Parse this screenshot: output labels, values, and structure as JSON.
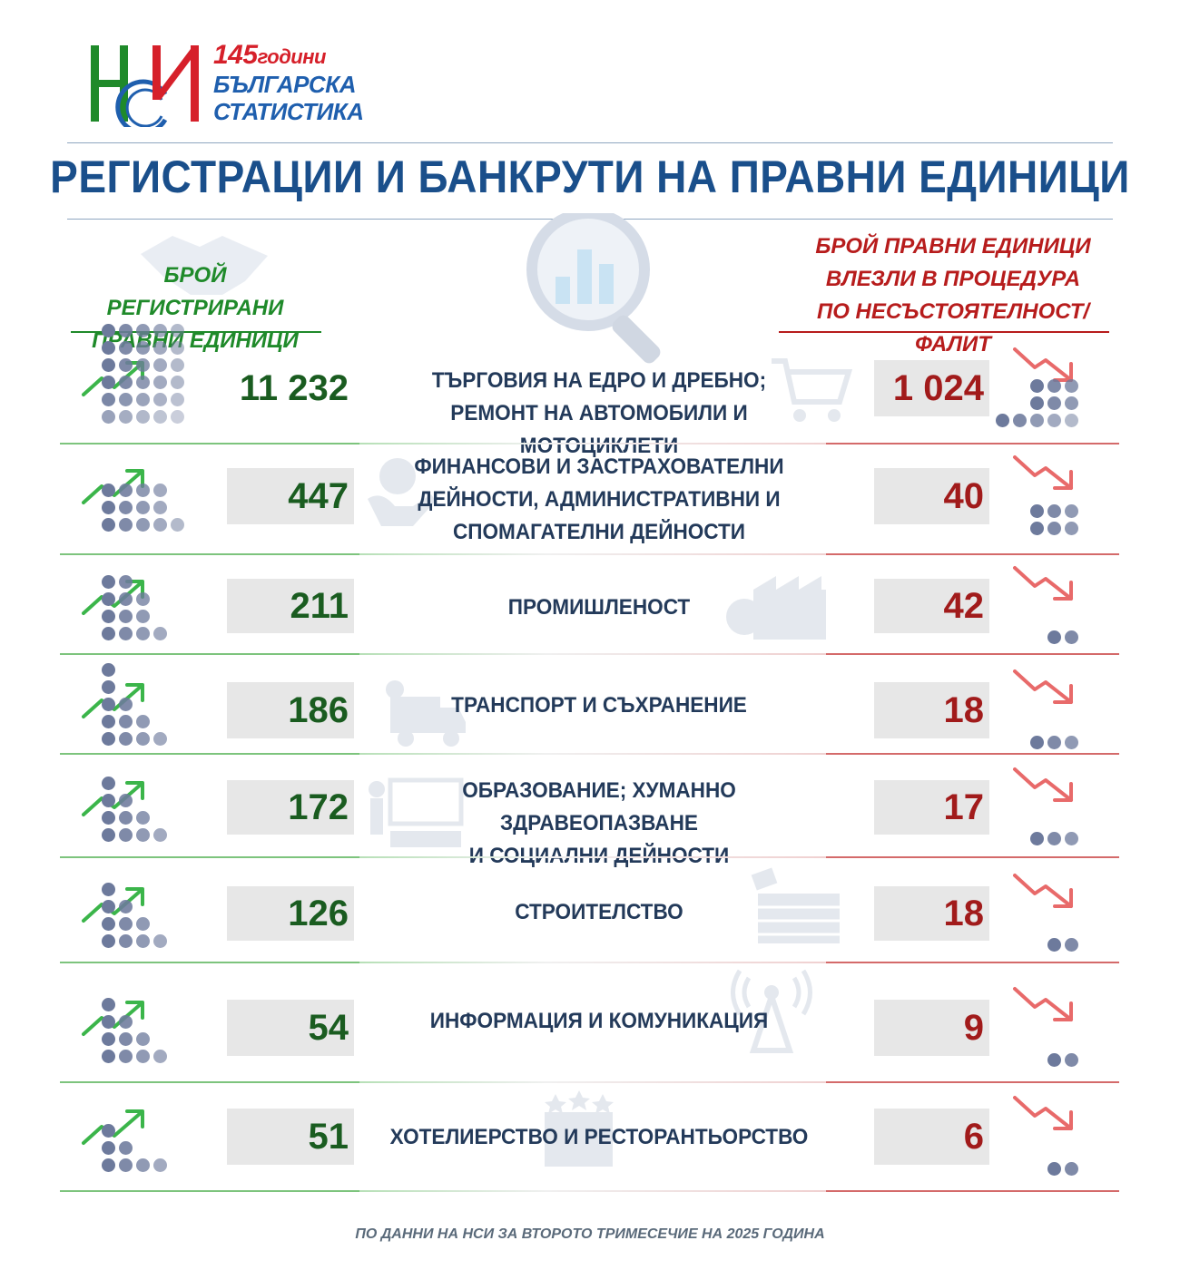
{
  "logo": {
    "letters": "НСИ",
    "years_number": "145",
    "years_word": "години",
    "line2": "БЪЛГАРСКА",
    "line3": "СТАТИСТИКА"
  },
  "title": "РЕГИСТРАЦИИ И БАНКРУТИ НА ПРАВНИ ЕДИНИЦИ",
  "left_heading": [
    "БРОЙ РЕГИСТРИРАНИ",
    "ПРАВНИ ЕДИНИЦИ"
  ],
  "right_heading": [
    "БРОЙ ПРАВНИ ЕДИНИЦИ",
    "ВЛЕЗЛИ В ПРОЦЕДУРА",
    "ПО НЕСЪСТОЯТЕЛНОСТ/ФАЛИТ"
  ],
  "rows": [
    {
      "registered": "11 232",
      "label": [
        "ТЪРГОВИЯ НА ЕДРО И ДРЕБНО;",
        "РЕМОНТ НА АВТОМОБИЛИ И МОТОЦИКЛЕТИ"
      ],
      "bankrupt": "1 024",
      "icon": "shopping-cart-icon"
    },
    {
      "registered": "447",
      "label": [
        "ФИНАНСОВИ И ЗАСТРАХОВАТЕЛНИ",
        "ДЕЙНОСТИ, АДМИНИСТРАТИВНИ И",
        "СПОМАГАТЕЛНИ ДЕЙНОСТИ"
      ],
      "bankrupt": "40",
      "icon": "hand-coin-icon"
    },
    {
      "registered": "211",
      "label": [
        "ПРОМИШЛЕНОСТ"
      ],
      "bankrupt": "42",
      "icon": "factory-icon"
    },
    {
      "registered": "186",
      "label": [
        "ТРАНСПОРТ И СЪХРАНЕНИЕ"
      ],
      "bankrupt": "18",
      "icon": "delivery-truck-icon"
    },
    {
      "registered": "172",
      "label": [
        "ОБРАЗОВАНИЕ; ХУМАННО ЗДРАВЕОПАЗВАНЕ",
        "И СОЦИАЛНИ ДЕЙНОСТИ"
      ],
      "bankrupt": "17",
      "icon": "classroom-icon"
    },
    {
      "registered": "126",
      "label": [
        "СТРОИТЕЛСТВО"
      ],
      "bankrupt": "18",
      "icon": "brick-wall-icon"
    },
    {
      "registered": "54",
      "label": [
        "ИНФОРМАЦИЯ И  КОМУНИКАЦИЯ"
      ],
      "bankrupt": "9",
      "icon": "antenna-tower-icon"
    },
    {
      "registered": "51",
      "label": [
        "ХОТЕЛИЕРСТВО И РЕСТОРАНТЬОРСТВО"
      ],
      "bankrupt": "6",
      "icon": "hotel-icon"
    }
  ],
  "colors": {
    "title": "#1a4f8b",
    "registered": "#1a5c20",
    "bankrupt": "#a11b1b",
    "dots": "#6d7a9c",
    "arrow_up": "#3bb54a",
    "arrow_down": "#e86a6a"
  },
  "footer": "ПО ДАННИ НА НСИ ЗА ВТОРОТО ТРИМЕСЕЧИЕ НА 2025 ГОДИНА"
}
